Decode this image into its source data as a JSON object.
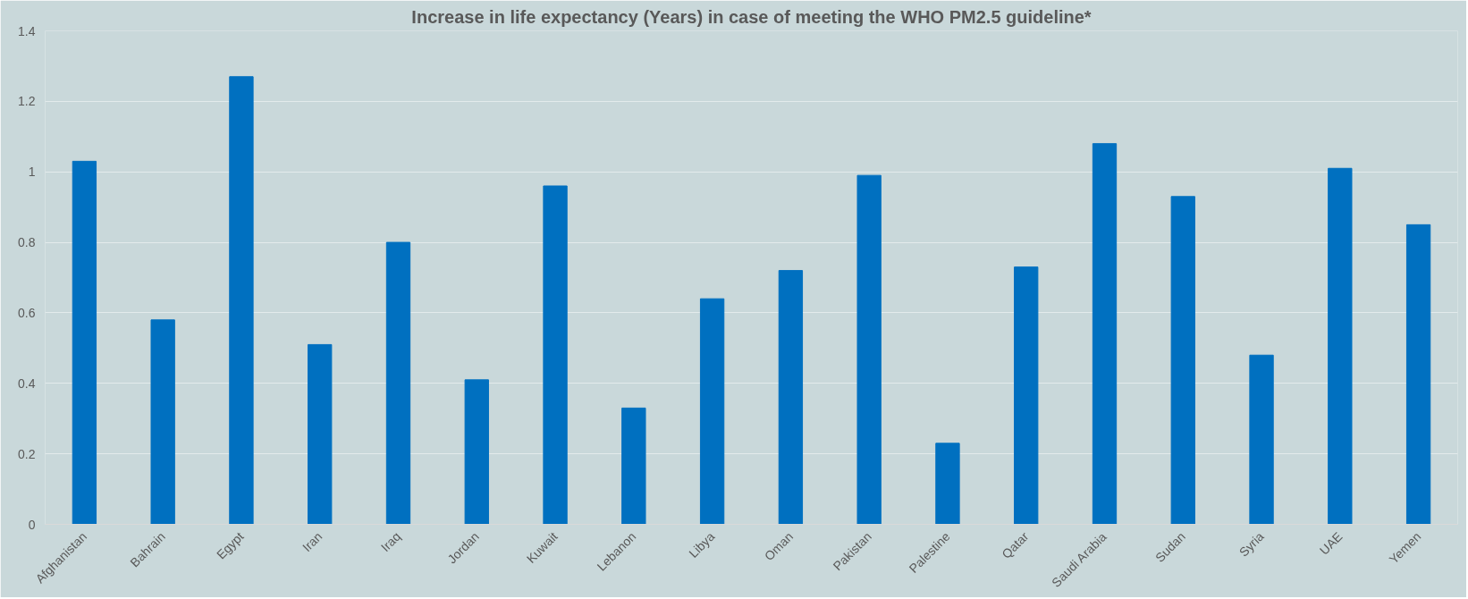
{
  "chart_data": {
    "type": "bar",
    "title": "Increase in life expectancy (Years) in case of meeting the WHO PM2.5 guideline*",
    "categories": [
      "Afghanistan",
      "Bahrain",
      "Egypt",
      "Iran",
      "Iraq",
      "Jordan",
      "Kuwait",
      "Lebanon",
      "Libya",
      "Oman",
      "Pakistan",
      "Palestine",
      "Qatar",
      "Saudi Arabia",
      "Sudan",
      "Syria",
      "UAE",
      "Yemen"
    ],
    "values": [
      1.03,
      0.58,
      1.27,
      0.51,
      0.8,
      0.41,
      0.96,
      0.33,
      0.64,
      0.72,
      0.99,
      0.23,
      0.73,
      1.08,
      0.93,
      0.48,
      1.01,
      0.85
    ],
    "color": "#0070c0",
    "ylim": [
      0,
      1.4
    ],
    "yticks": [
      0,
      0.2,
      0.4,
      0.6,
      0.8,
      1,
      1.2,
      1.4
    ],
    "grid": "y"
  }
}
